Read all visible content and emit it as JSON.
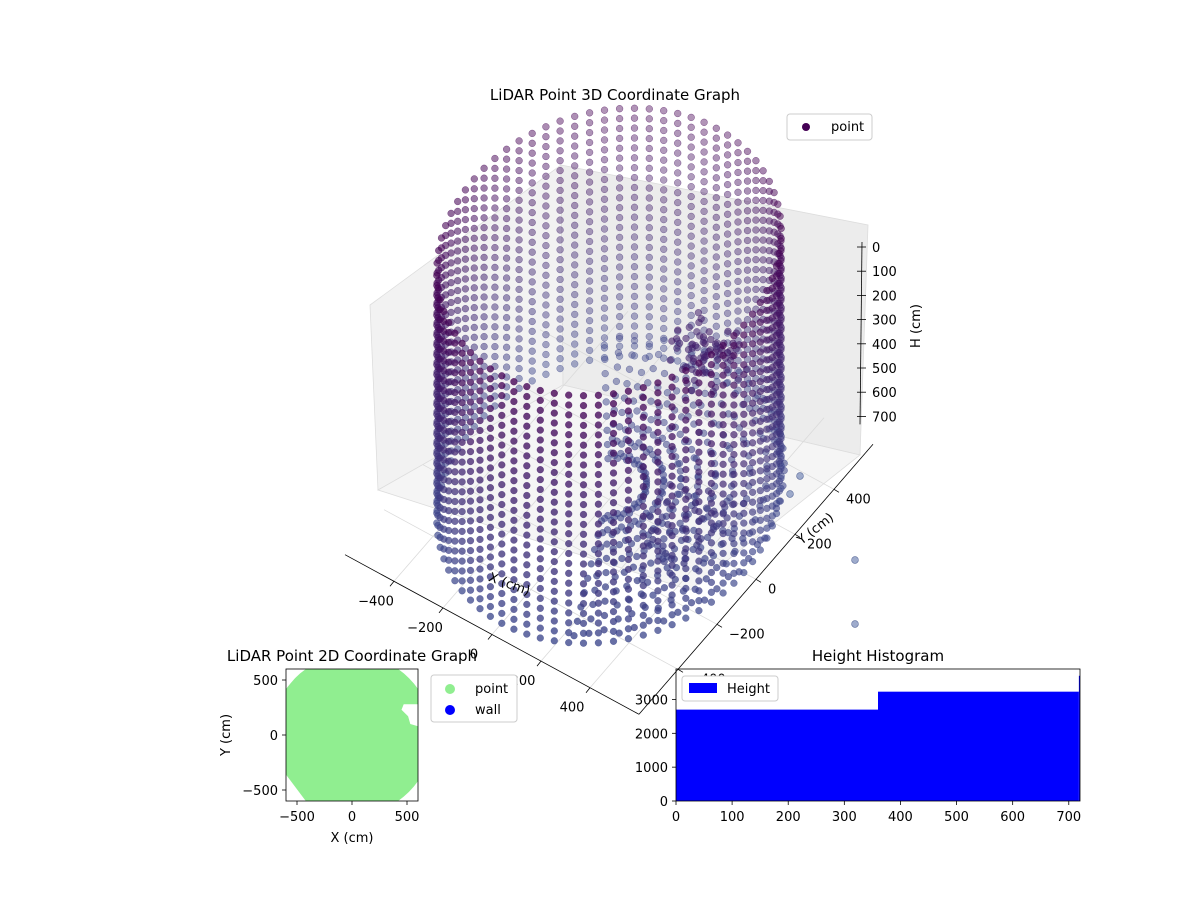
{
  "chart_data": [
    {
      "type": "scatter3d",
      "title": "LiDAR Point 3D Coordinate Graph",
      "xlabel": "X (cm)",
      "ylabel": "Y (cm)",
      "zlabel": "H (cm)",
      "xticks": [
        -400,
        -200,
        0,
        200,
        400
      ],
      "yticks": [
        -400,
        -200,
        0,
        200,
        400
      ],
      "zticks": [
        0,
        100,
        200,
        300,
        400,
        500,
        600,
        700
      ],
      "xlim": [
        -600,
        600
      ],
      "ylim": [
        -600,
        600
      ],
      "zlim": [
        0,
        750
      ],
      "zaxis_inverted": true,
      "legend": {
        "entries": [
          "point"
        ],
        "placement": "top-right"
      },
      "colormap": "viridis-dark",
      "cylinder": {
        "radius": 550,
        "height_range": [
          0,
          750
        ],
        "angular_columns": 72,
        "rings": 26
      },
      "inner_cluster": {
        "center_x": 260,
        "center_y": 180,
        "height_range": [
          250,
          400
        ]
      },
      "floor_rays": {
        "count": 40,
        "radius_range": [
          120,
          560
        ],
        "height": 720
      }
    },
    {
      "type": "scatter",
      "title": "LiDAR Point 2D Coordinate Graph",
      "xlabel": "X (cm)",
      "ylabel": "Y (cm)",
      "xticks": [
        -500,
        0,
        500
      ],
      "yticks": [
        -500,
        0,
        500
      ],
      "xlim": [
        -600,
        600
      ],
      "ylim": [
        -600,
        600
      ],
      "legend": {
        "entries": [
          "point",
          "wall"
        ],
        "placement": "outside-right"
      },
      "series": [
        {
          "name": "point",
          "color": "#90ee90"
        },
        {
          "name": "wall",
          "color": "#0000ff"
        }
      ]
    },
    {
      "type": "histogram",
      "title": "Height Histogram",
      "xticks": [
        0,
        100,
        200,
        300,
        400,
        500,
        600,
        700
      ],
      "yticks": [
        0,
        1000,
        2000,
        3000
      ],
      "xlim": [
        0,
        720
      ],
      "ylim": [
        0,
        3900
      ],
      "legend": {
        "entries": [
          "Height"
        ],
        "placement": "top-left"
      },
      "color": "#0000ff",
      "bins": [
        {
          "start": 0,
          "end": 360,
          "count": 2700
        },
        {
          "start": 360,
          "end": 718,
          "count": 3230
        },
        {
          "start": 718,
          "end": 720,
          "count": 3700
        }
      ]
    }
  ]
}
